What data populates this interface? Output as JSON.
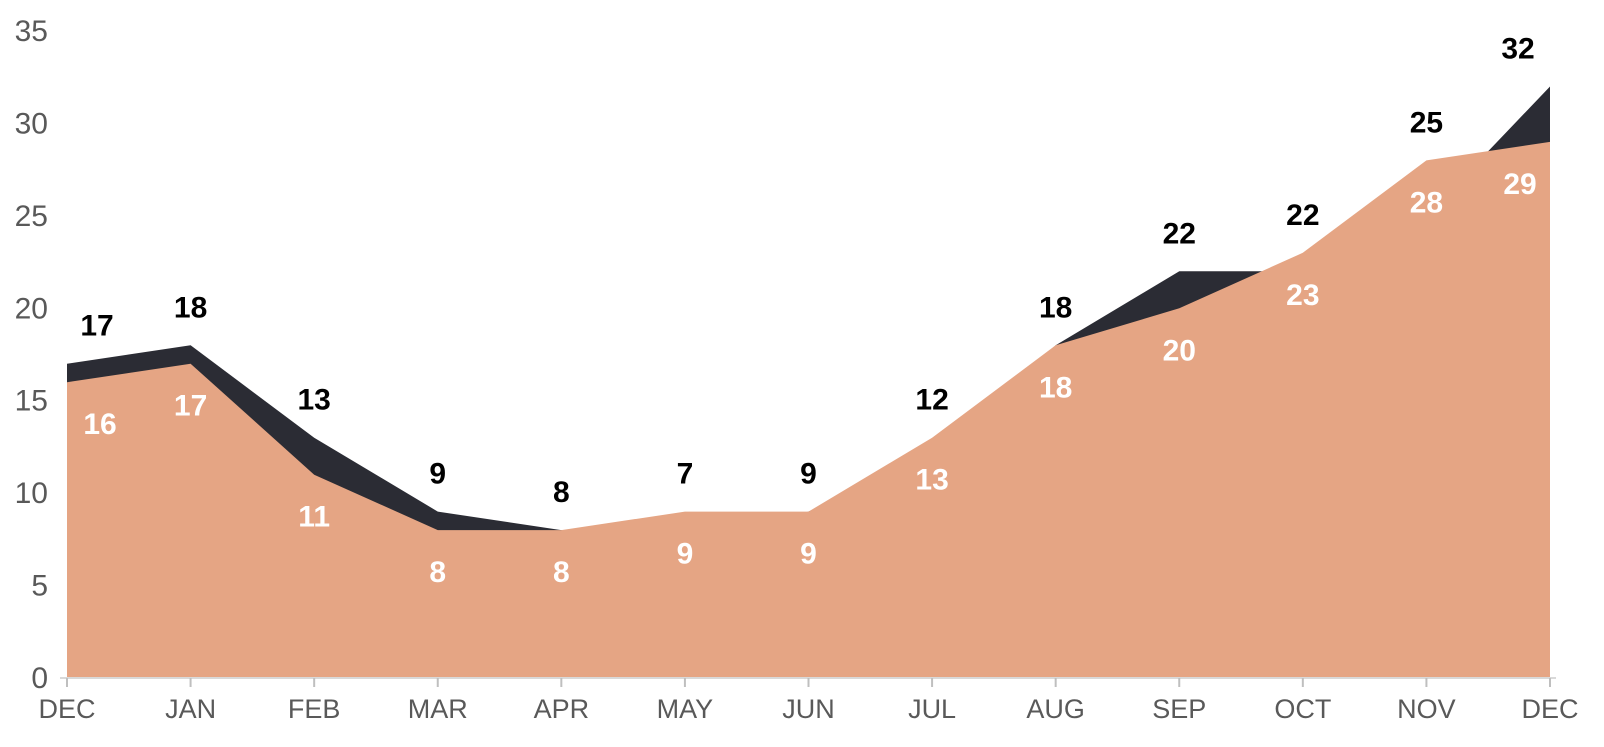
{
  "chart_data": {
    "type": "area",
    "title": "",
    "categories": [
      "DEC",
      "JAN",
      "FEB",
      "MAR",
      "APR",
      "MAY",
      "JUN",
      "JUL",
      "AUG",
      "SEP",
      "OCT",
      "NOV",
      "DEC"
    ],
    "series": [
      {
        "name": "dark-series",
        "color": "#2b2c34",
        "label_color": "#000000",
        "values": [
          17,
          18,
          13,
          9,
          8,
          7,
          9,
          12,
          18,
          22,
          22,
          25,
          32
        ]
      },
      {
        "name": "salmon-series",
        "color": "#e5a584",
        "label_color": "#ffffff",
        "values": [
          16,
          17,
          11,
          8,
          8,
          9,
          9,
          13,
          18,
          20,
          23,
          28,
          29
        ]
      }
    ],
    "ylim": [
      0,
      35
    ],
    "yticks": [
      0,
      5,
      10,
      15,
      20,
      25,
      30,
      35
    ],
    "grid": "off",
    "legend": "none",
    "background": "#ffffff",
    "axis_text_color": "#595959",
    "axis_line_color": "#d9d9d9",
    "tick_mark_color": "#bfbfbf"
  }
}
